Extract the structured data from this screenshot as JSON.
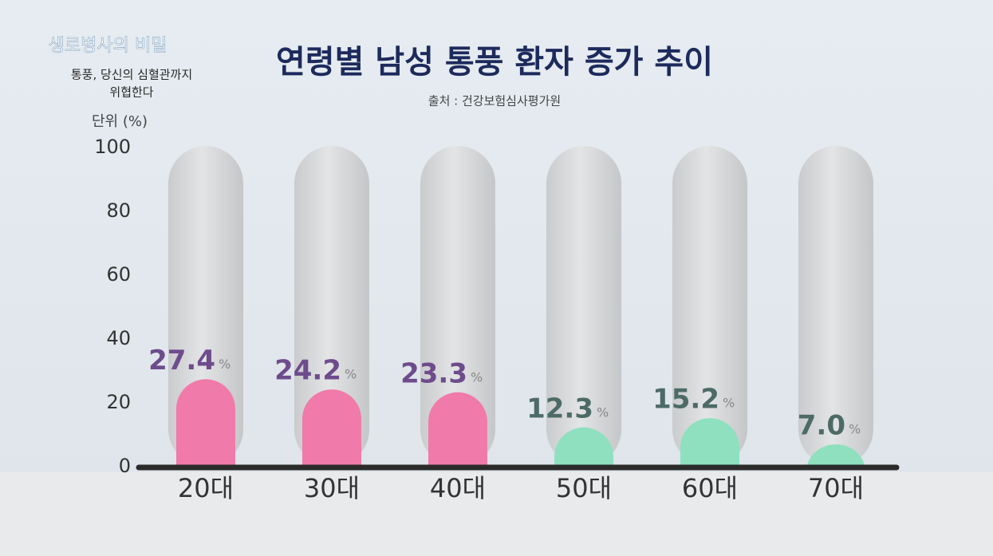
{
  "overlay": {
    "show_title": "생로병사의 비밀",
    "episode_line1": "통풍, 당신의 심혈관까지",
    "episode_line2": "위협한다"
  },
  "chart_data": {
    "type": "bar",
    "title": "연령별 남성 통풍 환자 증가 추이",
    "subtitle": "출처 : 건강보험심사평가원",
    "y_axis_label": "단위 (%)",
    "categories": [
      "20대",
      "30대",
      "40대",
      "50대",
      "60대",
      "70대"
    ],
    "values": [
      27.4,
      24.2,
      23.3,
      12.3,
      15.2,
      7.0
    ],
    "value_labels": [
      "27.4",
      "24.2",
      "23.3",
      "12.3",
      "15.2",
      "7.0"
    ],
    "value_suffix": "%",
    "colors": [
      "#f07aaa",
      "#f07aaa",
      "#f07aaa",
      "#8ee0bf",
      "#8ee0bf",
      "#8ee0bf"
    ],
    "label_colors": [
      "#6e4c8c",
      "#6e4c8c",
      "#6e4c8c",
      "#4d6b66",
      "#4d6b66",
      "#4d6b66"
    ],
    "ylim": [
      0,
      100
    ],
    "yticks": [
      0,
      20,
      40,
      60,
      80,
      100
    ],
    "grid": false
  }
}
